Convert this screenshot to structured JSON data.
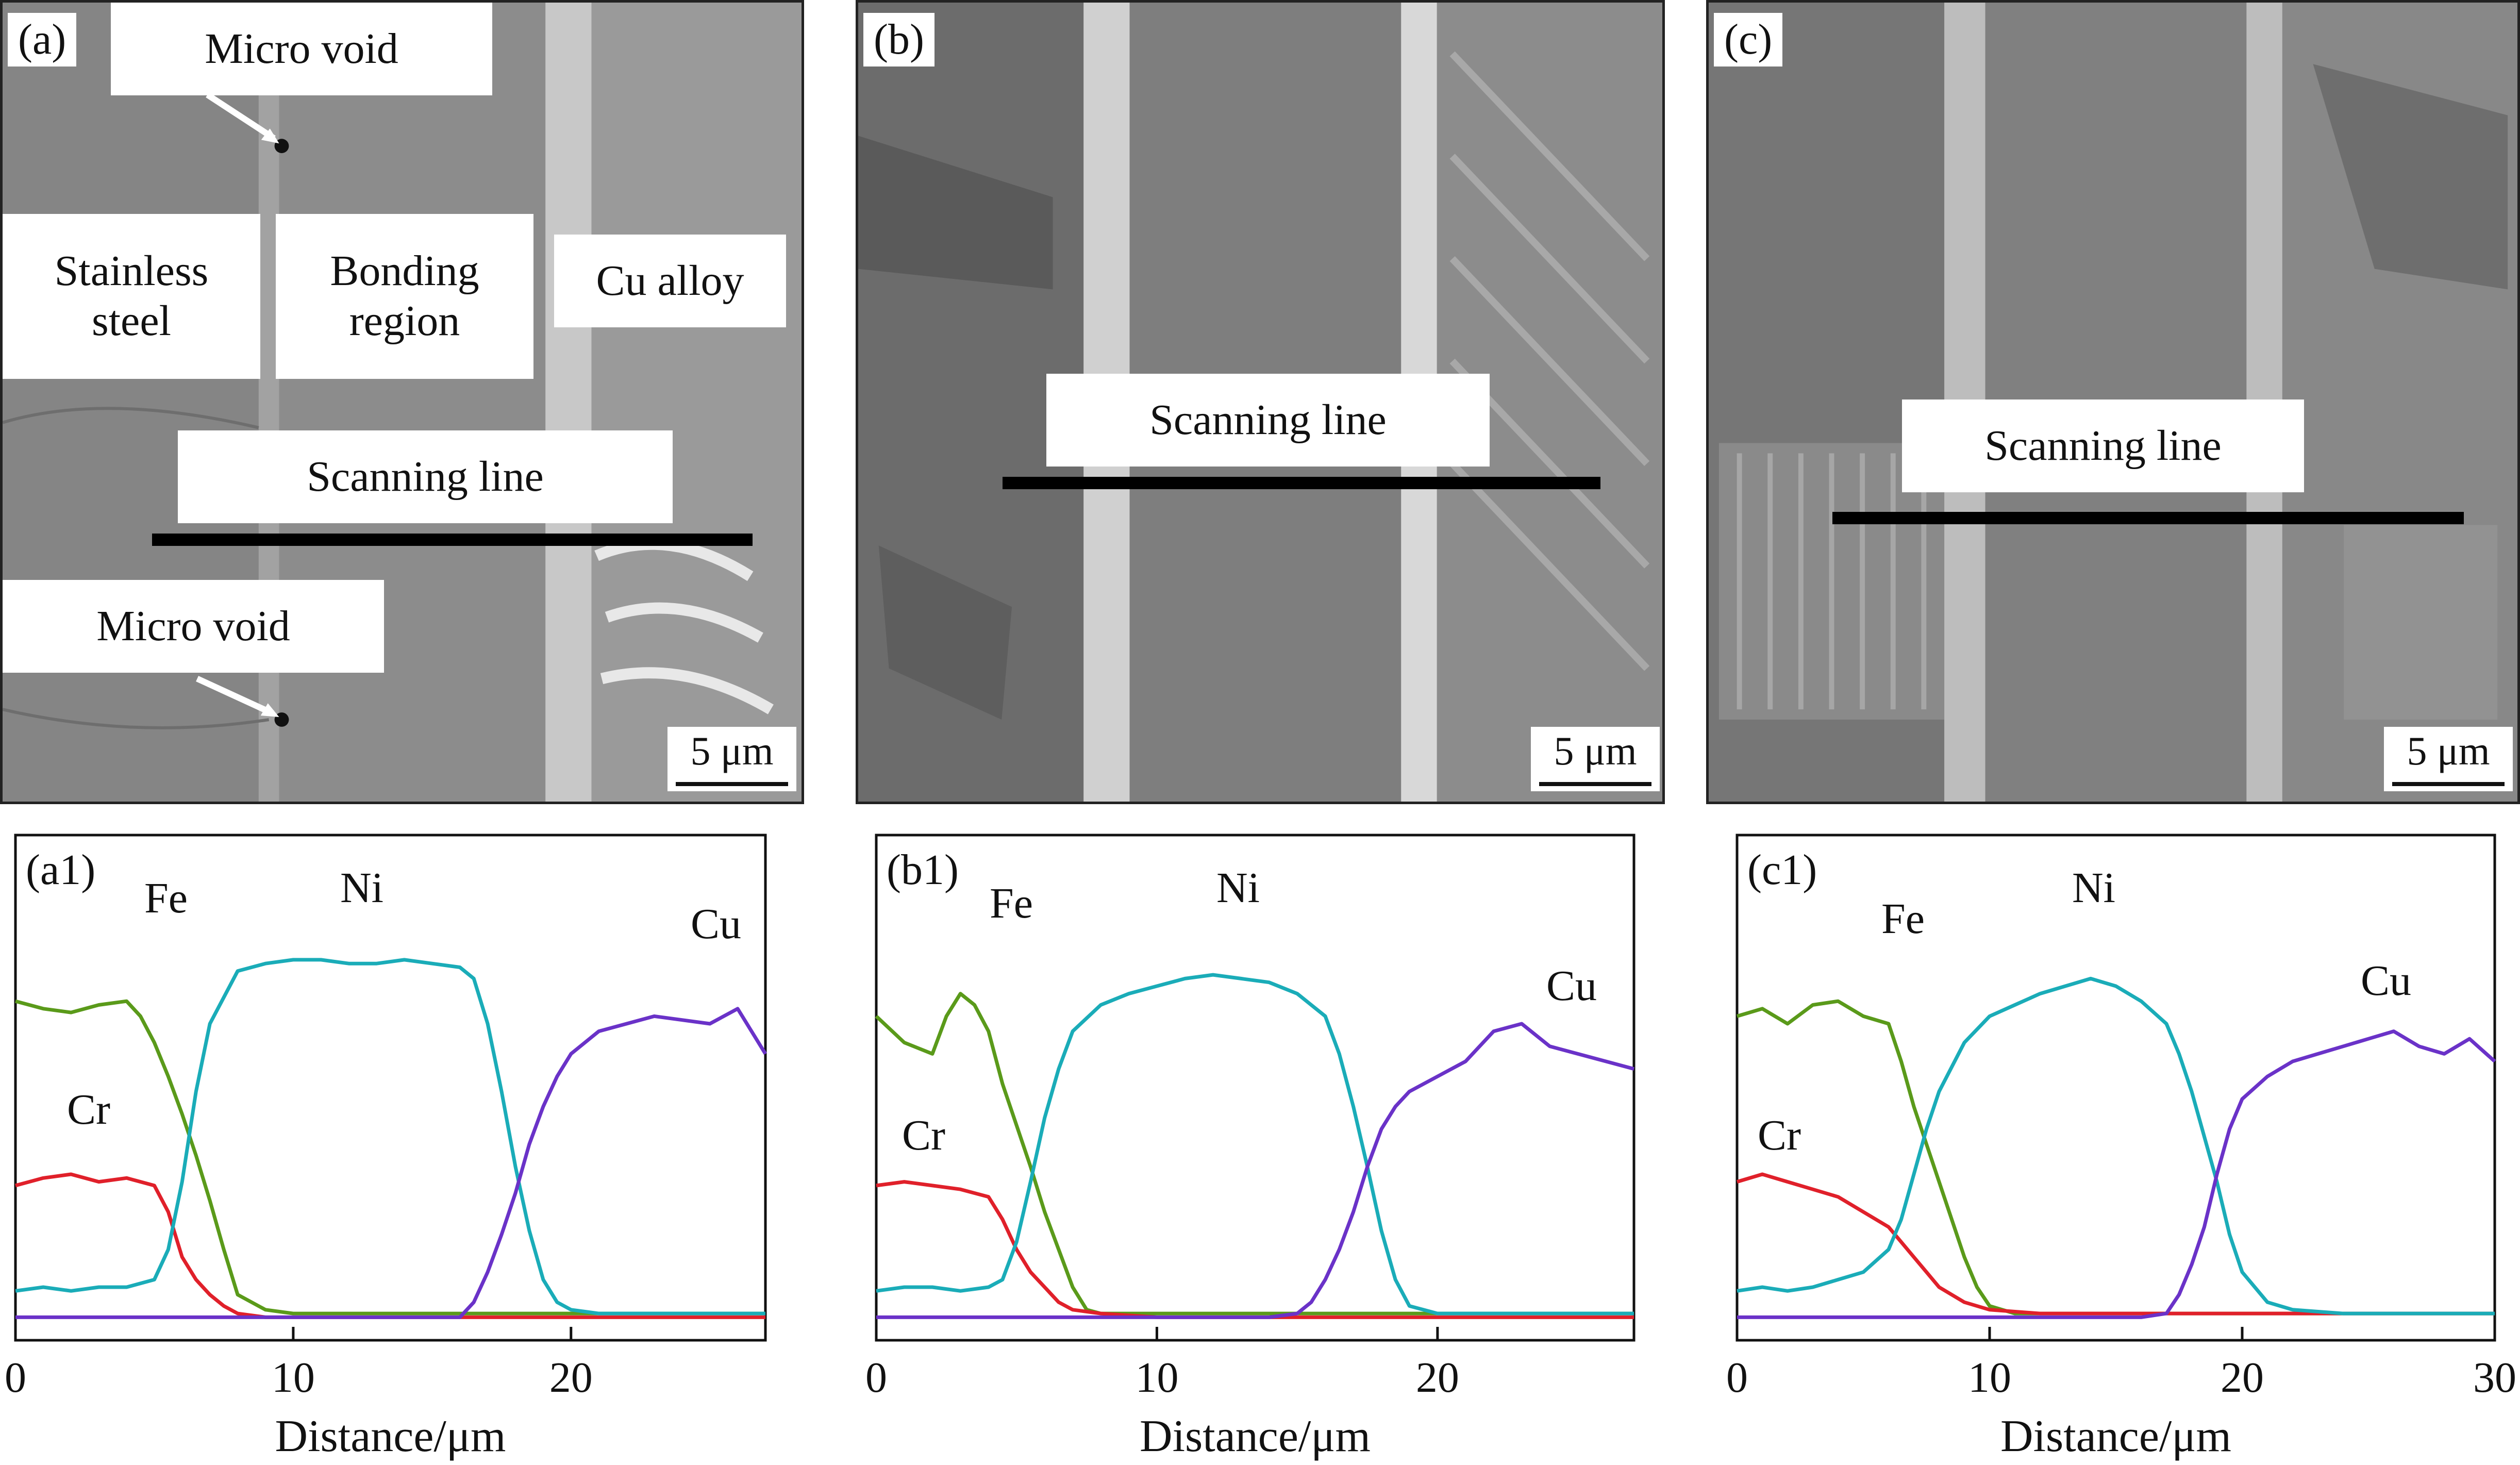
{
  "panels": [
    {
      "tag": "(a)",
      "labels": {
        "micro_void_top": "Micro void",
        "stainless": "Stainless steel",
        "bonding": "Bonding region",
        "cu_alloy": "Cu alloy",
        "scanning": "Scanning line",
        "micro_void_bottom": "Micro void"
      },
      "scale": "5 μm"
    },
    {
      "tag": "(b)",
      "labels": {
        "scanning": "Scanning line"
      },
      "scale": "5 μm"
    },
    {
      "tag": "(c)",
      "labels": {
        "scanning": "Scanning line"
      },
      "scale": "5 μm"
    }
  ],
  "chart_data": [
    {
      "type": "line",
      "tag": "(a1)",
      "xlabel": "Distance/μm",
      "xlim": [
        0,
        27
      ],
      "xticks": [
        0,
        10,
        20
      ],
      "ylim": [
        0,
        100
      ],
      "series": [
        {
          "name": "Fe",
          "color": "#5a9a1a",
          "x": [
            0,
            1,
            2,
            3,
            4,
            4.5,
            5,
            5.5,
            6,
            6.5,
            7,
            7.5,
            8,
            9,
            10,
            12,
            14,
            16,
            18,
            20,
            22,
            24,
            26,
            27
          ],
          "y": [
            86,
            84,
            83,
            85,
            86,
            82,
            75,
            66,
            56,
            45,
            33,
            20,
            8,
            4,
            3,
            3,
            3,
            3,
            3,
            3,
            3,
            3,
            3,
            3
          ]
        },
        {
          "name": "Cr",
          "color": "#e0202a",
          "x": [
            0,
            1,
            2,
            3,
            4,
            5,
            5.5,
            6,
            6.5,
            7,
            7.5,
            8,
            9,
            10,
            12,
            14,
            16,
            18,
            20,
            22,
            24,
            26,
            27
          ],
          "y": [
            37,
            39,
            40,
            38,
            39,
            37,
            30,
            18,
            12,
            8,
            5,
            3,
            2,
            2,
            2,
            2,
            2,
            2,
            2,
            2,
            2,
            2,
            2
          ]
        },
        {
          "name": "Ni",
          "color": "#1aacb8",
          "x": [
            0,
            1,
            2,
            3,
            4,
            5,
            5.5,
            6,
            6.5,
            7,
            8,
            9,
            10,
            11,
            12,
            13,
            14,
            15,
            16,
            16.5,
            17,
            17.5,
            18,
            18.5,
            19,
            19.5,
            20,
            21,
            22,
            24,
            26,
            27
          ],
          "y": [
            9,
            10,
            9,
            10,
            10,
            12,
            20,
            38,
            62,
            80,
            94,
            96,
            97,
            97,
            96,
            96,
            97,
            96,
            95,
            92,
            80,
            62,
            42,
            25,
            12,
            6,
            4,
            3,
            3,
            3,
            3,
            3
          ]
        },
        {
          "name": "Cu",
          "color": "#6a32c8",
          "x": [
            0,
            2,
            4,
            6,
            8,
            10,
            12,
            14,
            16,
            16.5,
            17,
            17.5,
            18,
            18.5,
            19,
            19.5,
            20,
            21,
            22,
            23,
            24,
            25,
            26,
            27
          ],
          "y": [
            2,
            2,
            2,
            2,
            2,
            2,
            2,
            2,
            2,
            6,
            14,
            24,
            35,
            48,
            58,
            66,
            72,
            78,
            80,
            82,
            81,
            80,
            84,
            72
          ]
        }
      ],
      "series_labels": {
        "Fe": "Fe",
        "Cr": "Cr",
        "Ni": "Ni",
        "Cu": "Cu"
      }
    },
    {
      "type": "line",
      "tag": "(b1)",
      "xlabel": "Distance/μm",
      "xlim": [
        0,
        27
      ],
      "xticks": [
        0,
        10,
        20
      ],
      "ylim": [
        0,
        100
      ],
      "series": [
        {
          "name": "Fe",
          "color": "#5a9a1a",
          "x": [
            0,
            1,
            2,
            2.5,
            3,
            3.5,
            4,
            4.5,
            5,
            5.5,
            6,
            6.5,
            7,
            7.5,
            8,
            10,
            12,
            14,
            16,
            18,
            20,
            22,
            24,
            27
          ],
          "y": [
            82,
            75,
            72,
            82,
            88,
            85,
            78,
            64,
            53,
            42,
            30,
            20,
            10,
            4,
            3,
            3,
            3,
            3,
            3,
            3,
            3,
            3,
            3,
            3
          ]
        },
        {
          "name": "Cr",
          "color": "#e0202a",
          "x": [
            0,
            1,
            2,
            3,
            4,
            4.5,
            5,
            5.5,
            6,
            6.5,
            7,
            8,
            10,
            12,
            14,
            16,
            18,
            20,
            22,
            24,
            27
          ],
          "y": [
            37,
            38,
            37,
            36,
            34,
            28,
            20,
            14,
            10,
            6,
            4,
            3,
            2,
            2,
            2,
            2,
            2,
            2,
            2,
            2,
            2
          ]
        },
        {
          "name": "Ni",
          "color": "#1aacb8",
          "x": [
            0,
            1,
            2,
            3,
            4,
            4.5,
            5,
            5.5,
            6,
            6.5,
            7,
            8,
            9,
            10,
            11,
            12,
            13,
            14,
            15,
            16,
            16.5,
            17,
            17.5,
            18,
            18.5,
            19,
            20,
            22,
            24,
            27
          ],
          "y": [
            9,
            10,
            10,
            9,
            10,
            12,
            22,
            38,
            55,
            68,
            78,
            85,
            88,
            90,
            92,
            93,
            92,
            91,
            88,
            82,
            72,
            58,
            42,
            25,
            12,
            5,
            3,
            3,
            3,
            3
          ]
        },
        {
          "name": "Cu",
          "color": "#6a32c8",
          "x": [
            0,
            2,
            4,
            6,
            8,
            10,
            12,
            14,
            15,
            15.5,
            16,
            16.5,
            17,
            17.5,
            18,
            18.5,
            19,
            20,
            21,
            22,
            23,
            24,
            25,
            26,
            27
          ],
          "y": [
            2,
            2,
            2,
            2,
            2,
            2,
            2,
            2,
            3,
            6,
            12,
            20,
            30,
            42,
            52,
            58,
            62,
            66,
            70,
            78,
            80,
            74,
            72,
            70,
            68
          ]
        }
      ],
      "series_labels": {
        "Fe": "Fe",
        "Cr": "Cr",
        "Ni": "Ni",
        "Cu": "Cu"
      }
    },
    {
      "type": "line",
      "tag": "(c1)",
      "xlabel": "Distance/μm",
      "xlim": [
        0,
        30
      ],
      "xticks": [
        0,
        10,
        20,
        30
      ],
      "ylim": [
        0,
        100
      ],
      "series": [
        {
          "name": "Fe",
          "color": "#5a9a1a",
          "x": [
            0,
            1,
            2,
            3,
            4,
            5,
            6,
            6.5,
            7,
            7.5,
            8,
            8.5,
            9,
            9.5,
            10,
            11,
            12,
            14,
            16,
            18,
            20,
            22,
            24,
            26,
            28,
            30
          ],
          "y": [
            82,
            84,
            80,
            85,
            86,
            82,
            80,
            70,
            58,
            48,
            38,
            28,
            18,
            10,
            5,
            3,
            3,
            3,
            3,
            3,
            3,
            3,
            3,
            3,
            3,
            3
          ]
        },
        {
          "name": "Cr",
          "color": "#e0202a",
          "x": [
            0,
            1,
            2,
            3,
            4,
            5,
            6,
            6.5,
            7,
            7.5,
            8,
            9,
            10,
            12,
            14,
            16,
            18,
            20,
            22,
            24,
            26,
            28,
            30
          ],
          "y": [
            38,
            40,
            38,
            36,
            34,
            30,
            26,
            22,
            18,
            14,
            10,
            6,
            4,
            3,
            3,
            3,
            3,
            3,
            3,
            3,
            3,
            3,
            3
          ]
        },
        {
          "name": "Ni",
          "color": "#1aacb8",
          "x": [
            0,
            1,
            2,
            3,
            4,
            5,
            6,
            6.5,
            7,
            7.5,
            8,
            9,
            10,
            11,
            12,
            13,
            14,
            15,
            16,
            17,
            17.5,
            18,
            18.5,
            19,
            19.5,
            20,
            21,
            22,
            24,
            26,
            28,
            30
          ],
          "y": [
            9,
            10,
            9,
            10,
            12,
            14,
            20,
            28,
            40,
            52,
            62,
            75,
            82,
            85,
            88,
            90,
            92,
            90,
            86,
            80,
            72,
            62,
            50,
            38,
            24,
            14,
            6,
            4,
            3,
            3,
            3,
            3
          ]
        },
        {
          "name": "Cu",
          "color": "#6a32c8",
          "x": [
            0,
            2,
            4,
            6,
            8,
            10,
            12,
            14,
            16,
            17,
            17.5,
            18,
            18.5,
            19,
            19.5,
            20,
            21,
            22,
            23,
            24,
            25,
            26,
            27,
            28,
            29,
            30
          ],
          "y": [
            2,
            2,
            2,
            2,
            2,
            2,
            2,
            2,
            2,
            3,
            8,
            16,
            26,
            40,
            52,
            60,
            66,
            70,
            72,
            74,
            76,
            78,
            74,
            72,
            76,
            70
          ]
        }
      ],
      "series_labels": {
        "Fe": "Fe",
        "Cr": "Cr",
        "Ni": "Ni",
        "Cu": "Cu"
      }
    }
  ]
}
